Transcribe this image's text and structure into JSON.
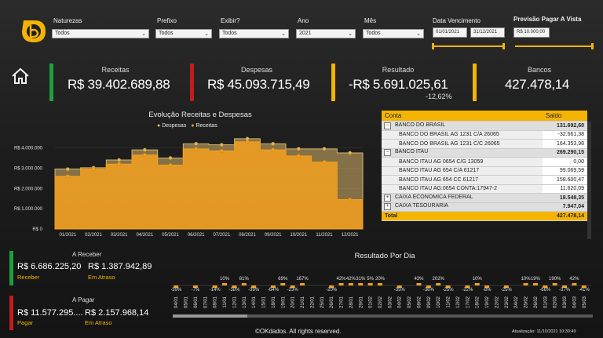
{
  "filters": {
    "naturezas": {
      "label": "Naturezas",
      "value": "Todos"
    },
    "prefixo": {
      "label": "Prefixo",
      "value": "Todos"
    },
    "exibir": {
      "label": "Exibir?",
      "value": "Todos"
    },
    "ano": {
      "label": "Ano",
      "value": "2021"
    },
    "mes": {
      "label": "Mês",
      "value": "Todos"
    },
    "data_vencimento": {
      "label": "Data Vencimento",
      "start": "01/01/2021",
      "end": "31/12/2021"
    },
    "previsao": {
      "label": "Previsão Pagar A Vista",
      "value": "R$ 10.000,00"
    }
  },
  "kpis": {
    "receitas": {
      "label": "Receitas",
      "value": "R$ 39.402.689,88",
      "color": "#1e9e3c"
    },
    "despesas": {
      "label": "Despesas",
      "value": "R$ 45.093.715,49",
      "color": "#c21c1c"
    },
    "resultado": {
      "label": "Resultado",
      "value": "-R$ 5.691.025,61",
      "pct": "-12,62%",
      "color": "#f4b400"
    },
    "bancos": {
      "label": "Bancos",
      "value": "427.478,14",
      "color": "#f4b400"
    }
  },
  "chart_data": [
    {
      "type": "area",
      "title": "Evolução Receitas e Despesas",
      "categories": [
        "01/2021",
        "02/2021",
        "03/2021",
        "04/2021",
        "05/2021",
        "06/2021",
        "07/2021",
        "08/2021",
        "09/2021",
        "10/2021",
        "11/2021",
        "12/2021"
      ],
      "series": [
        {
          "name": "Despesas",
          "values": [
            2950000,
            3020000,
            3400000,
            3900000,
            3500000,
            4200000,
            4150000,
            4450000,
            4200000,
            3950000,
            3950000,
            3750000
          ],
          "color": "#d8b66a"
        },
        {
          "name": "Receitas",
          "values": [
            2600000,
            2950000,
            3200000,
            3650000,
            3150000,
            3950000,
            3850000,
            4300000,
            3900000,
            3600000,
            3300000,
            1450000
          ],
          "color": "#f4a020"
        }
      ],
      "yticks": [
        "R$ 4.000.000",
        "R$ 3.000.000",
        "R$ 2.000.000",
        "R$ 1.000.000",
        "R$ 0"
      ],
      "ylim": [
        0,
        4600000
      ],
      "legend": "top"
    },
    {
      "type": "bar",
      "title": "Resultado Por Dia",
      "categories": [
        "04/01",
        "05/01",
        "06/01",
        "07/01",
        "08/01",
        "11/01",
        "12/01",
        "13/01",
        "14/01",
        "15/01",
        "18/01",
        "19/01",
        "20/01",
        "21/01",
        "22/01",
        "25/01",
        "26/01",
        "27/01",
        "28/01",
        "29/01",
        "01/02",
        "02/02",
        "03/02",
        "04/02",
        "05/02",
        "08/02",
        "09/02",
        "10/02",
        "11/02",
        "12/02",
        "17/02",
        "18/02",
        "19/02",
        "22/02",
        "23/02",
        "24/02",
        "25/02",
        "26/02",
        "01/03",
        "02/03",
        "03/03",
        "04/03",
        "05/03"
      ],
      "labels": [
        "-39%",
        "",
        "-7%",
        "",
        "-14%",
        "10%",
        "-38%",
        "81%",
        "-39%",
        "",
        "-64%",
        "69%",
        "-23%",
        "167%",
        "",
        "",
        "-20%",
        "42%",
        "42%",
        "31%",
        "5%",
        "20%",
        "",
        "-35%",
        "",
        "43%",
        "-36%",
        "202%",
        "-25%",
        "",
        "-22%",
        "10%",
        "-8%",
        "",
        "-25%",
        "",
        "10%",
        "19%",
        "-66%",
        "190%",
        "-37%",
        "42%",
        "-41%"
      ]
    }
  ],
  "bank_table": {
    "headers": [
      "Conta",
      "Saldo"
    ],
    "rows": [
      {
        "name": "BANCO DO BRASIL",
        "value": "131.692,60",
        "group": true,
        "expand": "−"
      },
      {
        "name": "BANCO DO BRASIL AG 1231 C/A 26065",
        "value": "-32.661,38",
        "group": false
      },
      {
        "name": "BANCO DO BRASIL AG 1231 C/C 26065",
        "value": "164.353,98",
        "group": false
      },
      {
        "name": "BANCO ITAU",
        "value": "269.290,15",
        "group": true,
        "expand": "−"
      },
      {
        "name": "BANCO ITAU AG 0654 C/G 13059",
        "value": "0,00",
        "group": false
      },
      {
        "name": "BANCO ITAU AG 654 C/A 61217",
        "value": "99.069,59",
        "group": false
      },
      {
        "name": "BANCO ITAU AG 654 CC 61217",
        "value": "158.600,47",
        "group": false
      },
      {
        "name": "BANCO ITAU AG:0654 CONTA:17947-2",
        "value": "11.620,09",
        "group": false
      },
      {
        "name": "CAIXA ECONOMICA FEDERAL",
        "value": "18.548,35",
        "group": true,
        "expand": "+"
      },
      {
        "name": "CAIXA TESOURARIA",
        "value": "7.947,04",
        "group": true,
        "expand": "+"
      }
    ],
    "total_label": "Total",
    "total_value": "427.478,14"
  },
  "receber": {
    "title": "A Receber",
    "value": "R$ 6.686.225,20",
    "sub": "Receber",
    "late_value": "R$ 1.387.942,89",
    "late_sub": "Em Atraso",
    "color": "#1e9e3c"
  },
  "pagar": {
    "title": "A Pagar",
    "value": "R$ 11.577.295....",
    "sub": "Pagar",
    "late_value": "R$ 2.157.968,14",
    "late_sub": "Em Atraso",
    "color": "#c21c1c"
  },
  "footer": {
    "copyright": "©OKdados. All rights reserved.",
    "update": "Atualização: 11/10/2021 10:30:49"
  }
}
